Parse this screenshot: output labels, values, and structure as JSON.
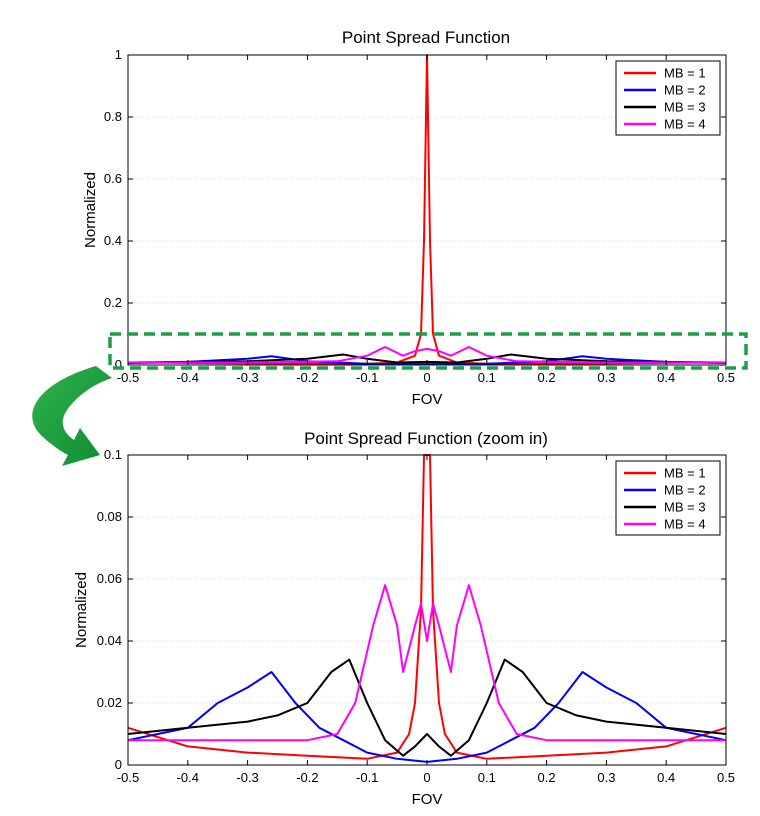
{
  "chart_data": [
    {
      "type": "line",
      "title": "Point Spread Function",
      "xlabel": "FOV",
      "ylabel": "Normalized",
      "xlim": [
        -0.5,
        0.5
      ],
      "ylim": [
        0,
        1
      ],
      "xticks": [
        -0.5,
        -0.4,
        -0.3,
        -0.2,
        -0.1,
        0,
        0.1,
        0.2,
        0.3,
        0.4,
        0.5
      ],
      "xtick_labels": [
        "-0.5",
        "-0.4",
        "-0.3",
        "-0.2",
        "-0.1",
        "0",
        "0.1",
        "0.2",
        "0.3",
        "0.4",
        "0.5"
      ],
      "yticks": [
        0,
        0.2,
        0.4,
        0.6,
        0.8,
        1
      ],
      "ytick_labels": [
        "0",
        "0.2",
        "0.4",
        "0.6",
        "0.8",
        "1"
      ],
      "grid": "horizontal dotted",
      "legend_position": "top-right",
      "series": [
        {
          "name": "MB = 1",
          "color": "#ff0000",
          "x": [
            -0.5,
            -0.3,
            -0.1,
            -0.05,
            -0.02,
            -0.01,
            -0.005,
            0,
            0.005,
            0.01,
            0.02,
            0.05,
            0.1,
            0.3,
            0.5
          ],
          "y": [
            0.008,
            0.005,
            0.004,
            0.008,
            0.03,
            0.1,
            0.4,
            1.0,
            0.4,
            0.1,
            0.03,
            0.008,
            0.004,
            0.005,
            0.008
          ]
        },
        {
          "name": "MB = 2",
          "color": "#0000ff",
          "x": [
            -0.5,
            -0.4,
            -0.3,
            -0.26,
            -0.2,
            -0.1,
            0,
            0.1,
            0.2,
            0.26,
            0.3,
            0.4,
            0.5
          ],
          "y": [
            0.006,
            0.01,
            0.02,
            0.028,
            0.012,
            0.004,
            0.003,
            0.004,
            0.012,
            0.028,
            0.02,
            0.01,
            0.006
          ]
        },
        {
          "name": "MB = 3",
          "color": "#000000",
          "x": [
            -0.5,
            -0.3,
            -0.2,
            -0.14,
            -0.1,
            -0.05,
            0,
            0.05,
            0.1,
            0.14,
            0.2,
            0.3,
            0.5
          ],
          "y": [
            0.008,
            0.012,
            0.02,
            0.034,
            0.02,
            0.008,
            0.01,
            0.008,
            0.02,
            0.034,
            0.02,
            0.012,
            0.008
          ]
        },
        {
          "name": "MB = 4",
          "color": "#ff00ff",
          "x": [
            -0.5,
            -0.3,
            -0.15,
            -0.1,
            -0.07,
            -0.04,
            -0.02,
            0,
            0.02,
            0.04,
            0.07,
            0.1,
            0.15,
            0.3,
            0.5
          ],
          "y": [
            0.008,
            0.008,
            0.012,
            0.03,
            0.058,
            0.03,
            0.045,
            0.052,
            0.045,
            0.03,
            0.058,
            0.03,
            0.012,
            0.008,
            0.008
          ]
        }
      ]
    },
    {
      "type": "line",
      "title": "Point Spread Function (zoom in)",
      "xlabel": "FOV",
      "ylabel": "Normalized",
      "xlim": [
        -0.5,
        0.5
      ],
      "ylim": [
        0,
        0.1
      ],
      "xticks": [
        -0.5,
        -0.4,
        -0.3,
        -0.2,
        -0.1,
        0,
        0.1,
        0.2,
        0.3,
        0.4,
        0.5
      ],
      "xtick_labels": [
        "-0.5",
        "-0.4",
        "-0.3",
        "-0.2",
        "-0.1",
        "0",
        "0.1",
        "0.2",
        "0.3",
        "0.4",
        "0.5"
      ],
      "yticks": [
        0,
        0.02,
        0.04,
        0.06,
        0.08,
        0.1
      ],
      "ytick_labels": [
        "0",
        "0.02",
        "0.04",
        "0.06",
        "0.08",
        "0.1"
      ],
      "grid": "horizontal dotted",
      "legend_position": "top-right",
      "series": [
        {
          "name": "MB = 1",
          "color": "#ff0000",
          "x": [
            -0.5,
            -0.4,
            -0.3,
            -0.2,
            -0.1,
            -0.05,
            -0.03,
            -0.02,
            -0.01,
            -0.005,
            0,
            0.005,
            0.01,
            0.02,
            0.03,
            0.05,
            0.1,
            0.2,
            0.3,
            0.4,
            0.5
          ],
          "y": [
            0.012,
            0.006,
            0.004,
            0.003,
            0.002,
            0.004,
            0.01,
            0.02,
            0.05,
            0.1,
            0.1,
            0.1,
            0.05,
            0.02,
            0.01,
            0.004,
            0.002,
            0.003,
            0.004,
            0.006,
            0.012
          ]
        },
        {
          "name": "MB = 2",
          "color": "#0000ff",
          "x": [
            -0.5,
            -0.45,
            -0.4,
            -0.35,
            -0.3,
            -0.26,
            -0.22,
            -0.18,
            -0.14,
            -0.1,
            -0.05,
            0,
            0.05,
            0.1,
            0.14,
            0.18,
            0.22,
            0.26,
            0.3,
            0.35,
            0.4,
            0.45,
            0.5
          ],
          "y": [
            0.008,
            0.01,
            0.012,
            0.02,
            0.025,
            0.03,
            0.02,
            0.012,
            0.008,
            0.004,
            0.002,
            0.001,
            0.002,
            0.004,
            0.008,
            0.012,
            0.02,
            0.03,
            0.025,
            0.02,
            0.012,
            0.01,
            0.008
          ]
        },
        {
          "name": "MB = 3",
          "color": "#000000",
          "x": [
            -0.5,
            -0.4,
            -0.3,
            -0.25,
            -0.2,
            -0.16,
            -0.13,
            -0.1,
            -0.07,
            -0.04,
            -0.02,
            0,
            0.02,
            0.04,
            0.07,
            0.1,
            0.13,
            0.16,
            0.2,
            0.25,
            0.3,
            0.4,
            0.5
          ],
          "y": [
            0.01,
            0.012,
            0.014,
            0.016,
            0.02,
            0.03,
            0.034,
            0.02,
            0.008,
            0.003,
            0.006,
            0.01,
            0.006,
            0.003,
            0.008,
            0.02,
            0.034,
            0.03,
            0.02,
            0.016,
            0.014,
            0.012,
            0.01
          ]
        },
        {
          "name": "MB = 4",
          "color": "#ff00ff",
          "x": [
            -0.5,
            -0.4,
            -0.3,
            -0.2,
            -0.15,
            -0.12,
            -0.09,
            -0.07,
            -0.05,
            -0.04,
            -0.02,
            -0.01,
            0,
            0.01,
            0.02,
            0.04,
            0.05,
            0.07,
            0.09,
            0.12,
            0.15,
            0.2,
            0.3,
            0.4,
            0.5
          ],
          "y": [
            0.008,
            0.008,
            0.008,
            0.008,
            0.01,
            0.02,
            0.045,
            0.058,
            0.045,
            0.03,
            0.045,
            0.052,
            0.04,
            0.052,
            0.045,
            0.03,
            0.045,
            0.058,
            0.045,
            0.02,
            0.01,
            0.008,
            0.008,
            0.008,
            0.008
          ]
        }
      ]
    }
  ]
}
